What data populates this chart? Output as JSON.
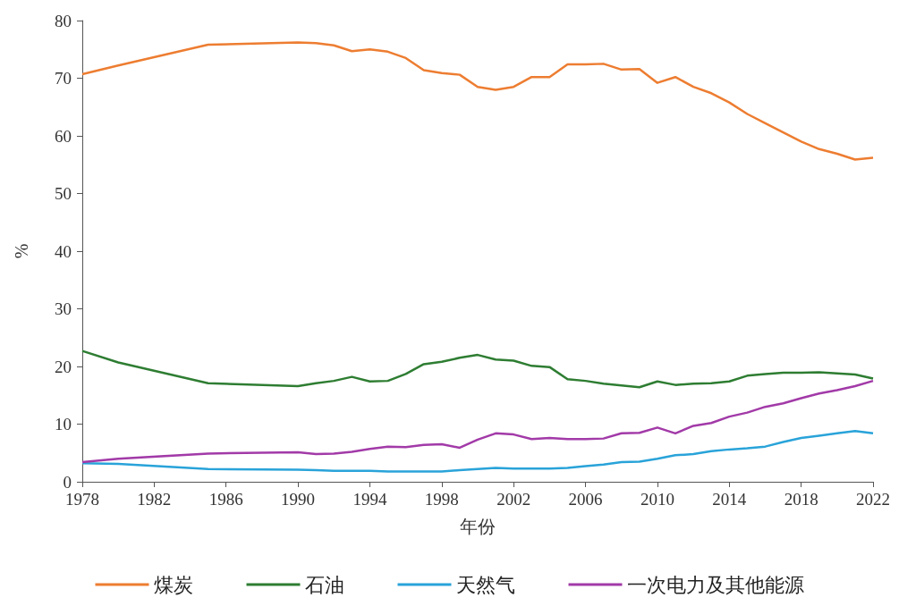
{
  "chart_data": {
    "type": "line",
    "xlabel": "年份",
    "ylabel": "%",
    "x": [
      1978,
      1980,
      1985,
      1990,
      1991,
      1992,
      1993,
      1994,
      1995,
      1996,
      1997,
      1998,
      1999,
      2000,
      2001,
      2002,
      2003,
      2004,
      2005,
      2006,
      2007,
      2008,
      2009,
      2010,
      2011,
      2012,
      2013,
      2014,
      2015,
      2016,
      2017,
      2018,
      2019,
      2020,
      2021,
      2022
    ],
    "series": [
      {
        "name": "煤炭",
        "color": "#ed7d31",
        "values": [
          70.7,
          72.2,
          75.8,
          76.2,
          76.1,
          75.7,
          74.7,
          75.0,
          74.6,
          73.5,
          71.4,
          70.9,
          70.6,
          68.5,
          68.0,
          68.5,
          70.2,
          70.2,
          72.4,
          72.4,
          72.5,
          71.5,
          71.6,
          69.2,
          70.2,
          68.5,
          67.4,
          65.8,
          63.8,
          62.2,
          60.6,
          59.0,
          57.7,
          56.9,
          55.9,
          56.2
        ]
      },
      {
        "name": "石油",
        "color": "#2e7d32",
        "values": [
          22.7,
          20.7,
          17.1,
          16.6,
          17.1,
          17.5,
          18.2,
          17.4,
          17.5,
          18.7,
          20.4,
          20.8,
          21.5,
          22.0,
          21.2,
          21.0,
          20.1,
          19.9,
          17.8,
          17.5,
          17.0,
          16.7,
          16.4,
          17.4,
          16.8,
          17.0,
          17.1,
          17.4,
          18.4,
          18.7,
          18.9,
          18.9,
          19.0,
          18.8,
          18.6,
          17.9
        ]
      },
      {
        "name": "天然气",
        "color": "#29a3d9",
        "values": [
          3.2,
          3.1,
          2.2,
          2.1,
          2.0,
          1.9,
          1.9,
          1.9,
          1.8,
          1.8,
          1.8,
          1.8,
          2.0,
          2.2,
          2.4,
          2.3,
          2.3,
          2.3,
          2.4,
          2.7,
          3.0,
          3.4,
          3.5,
          4.0,
          4.6,
          4.8,
          5.3,
          5.6,
          5.8,
          6.1,
          6.9,
          7.6,
          8.0,
          8.4,
          8.8,
          8.4
        ]
      },
      {
        "name": "一次电力及其他能源",
        "color": "#a23aa8",
        "values": [
          3.4,
          4.0,
          4.9,
          5.1,
          4.8,
          4.9,
          5.2,
          5.7,
          6.1,
          6.0,
          6.4,
          6.5,
          5.9,
          7.3,
          8.4,
          8.2,
          7.4,
          7.6,
          7.4,
          7.4,
          7.5,
          8.4,
          8.5,
          9.4,
          8.4,
          9.7,
          10.2,
          11.3,
          12.0,
          13.0,
          13.6,
          14.5,
          15.3,
          15.9,
          16.6,
          17.5
        ]
      }
    ],
    "xlim": [
      1978,
      2022
    ],
    "xticks": [
      1978,
      1982,
      1986,
      1990,
      1994,
      1998,
      2002,
      2006,
      2010,
      2014,
      2018,
      2022
    ],
    "ylim": [
      0,
      80
    ],
    "yticks": [
      0,
      10,
      20,
      30,
      40,
      50,
      60,
      70,
      80
    ],
    "grid": false,
    "legend": "bottom",
    "marker": "none",
    "line_style": "solid"
  }
}
